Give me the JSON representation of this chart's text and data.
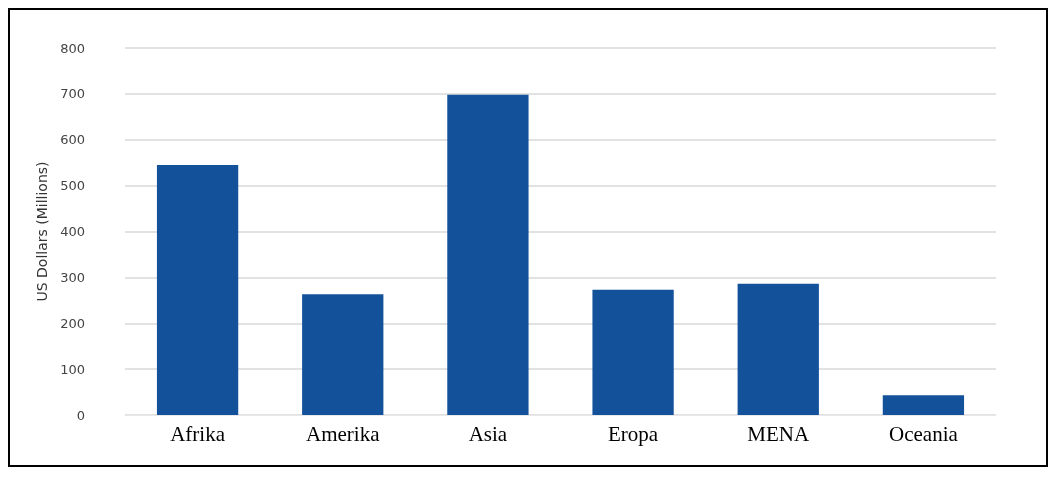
{
  "chart_data": {
    "type": "bar",
    "ylabel": "US Dollars (Millions)",
    "categories": [
      "Afrika",
      "Amerika",
      "Asia",
      "Eropa",
      "MENA",
      "Oceania"
    ],
    "values": [
      545,
      263,
      698,
      273,
      286,
      43
    ],
    "color": "#13529a",
    "ylim": [
      0,
      800
    ],
    "yticks": [
      0,
      100,
      200,
      300,
      400,
      500,
      600,
      700,
      800
    ],
    "grid": "y"
  }
}
